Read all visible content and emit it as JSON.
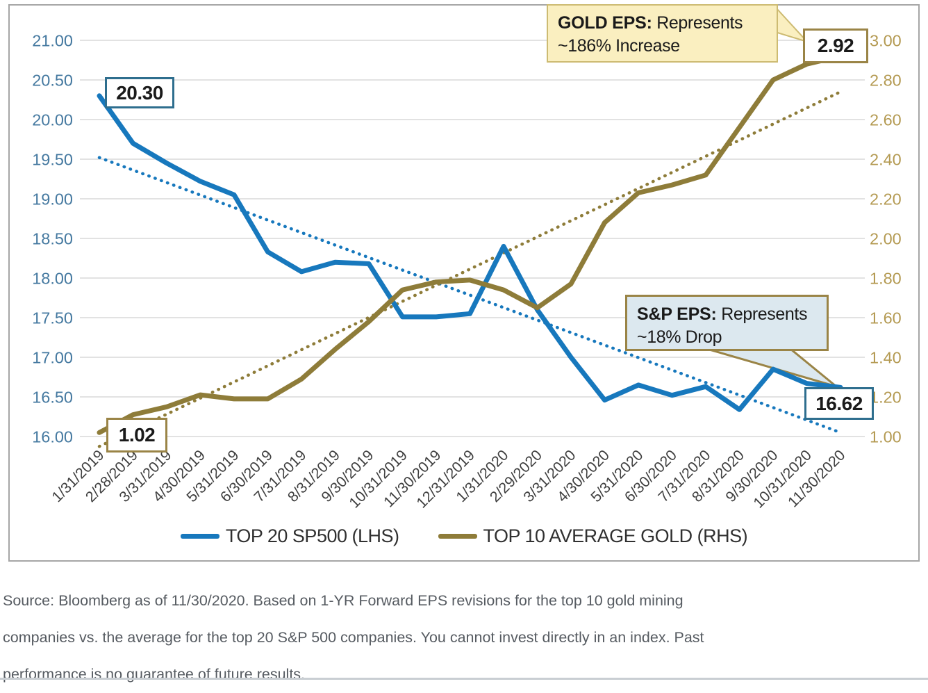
{
  "chart_data": {
    "type": "line",
    "title": "",
    "x_labels": [
      "1/31/2019",
      "2/28/2019",
      "3/31/2019",
      "4/30/2019",
      "5/31/2019",
      "6/30/2019",
      "7/31/2019",
      "8/31/2019",
      "9/30/2019",
      "10/31/2019",
      "11/30/2019",
      "12/31/2019",
      "1/31/2020",
      "2/29/2020",
      "3/31/2020",
      "4/30/2020",
      "5/31/2020",
      "6/30/2020",
      "7/31/2020",
      "8/31/2020",
      "9/30/2020",
      "10/31/2020",
      "11/30/2020"
    ],
    "left_axis": {
      "ticks": [
        "21.00",
        "20.50",
        "20.00",
        "19.50",
        "19.00",
        "18.50",
        "18.00",
        "17.50",
        "17.00",
        "16.50",
        "16.00"
      ],
      "min": 16.0,
      "max": 21.0
    },
    "right_axis": {
      "ticks": [
        "3.00",
        "2.80",
        "2.60",
        "2.40",
        "2.20",
        "2.00",
        "1.80",
        "1.60",
        "1.40",
        "1.20",
        "1.00"
      ],
      "min": 1.0,
      "max": 3.0
    },
    "grid": true,
    "legend_position": "bottom",
    "series": [
      {
        "name": "TOP 20 SP500 (LHS)",
        "axis": "left",
        "style": "solid",
        "color": "#1778bd",
        "values": [
          20.3,
          19.7,
          19.45,
          19.22,
          19.05,
          18.33,
          18.08,
          18.2,
          18.18,
          17.51,
          17.51,
          17.55,
          18.4,
          17.6,
          17.0,
          16.46,
          16.65,
          16.52,
          16.63,
          16.34,
          16.85,
          16.67,
          16.62
        ]
      },
      {
        "name": "TOP 10 AVERAGE GOLD (RHS)",
        "axis": "right",
        "style": "solid",
        "color": "#8e7c39",
        "values": [
          1.02,
          1.11,
          1.15,
          1.21,
          1.19,
          1.19,
          1.29,
          1.44,
          1.58,
          1.74,
          1.78,
          1.79,
          1.74,
          1.65,
          1.77,
          2.08,
          2.23,
          2.27,
          2.32,
          2.56,
          2.8,
          2.88,
          2.92
        ]
      },
      {
        "name": "SP500 linear trendline",
        "axis": "left",
        "style": "dotted",
        "color": "#1778bd",
        "endpoints": [
          19.52,
          16.05
        ]
      },
      {
        "name": "GOLD linear trendline",
        "axis": "right",
        "style": "dotted",
        "color": "#8e7c39",
        "endpoints": [
          0.95,
          2.74
        ]
      }
    ],
    "point_labels": {
      "sp500_start": "20.30",
      "sp500_end": "16.62",
      "gold_start": "1.02",
      "gold_end": "2.92"
    },
    "colors": {
      "gridline": "#d9d9d9",
      "left_tick_label": "#4579a0",
      "right_tick_label": "#b49a52",
      "x_tick_label": "#3f3f3f"
    }
  },
  "callouts": {
    "gold": {
      "prefix": "GOLD EPS:",
      "rest": " Represents",
      "line2": "~186% Increase",
      "bg": "#faefc0",
      "border": "#cdbb72"
    },
    "sp": {
      "prefix": "S&P EPS:",
      "rest": " Represents",
      "line2": "~18% Drop",
      "bg": "#dce8ef",
      "border": "#9a8446"
    }
  },
  "source": {
    "lines": [
      "Source: Bloomberg as of 11/30/2020. Based on 1-YR Forward EPS revisions for the top 10 gold mining",
      "companies vs. the average for the top 20 S&P 500 companies. You cannot invest directly in an index. Past",
      "performance is no guarantee of future results."
    ]
  }
}
